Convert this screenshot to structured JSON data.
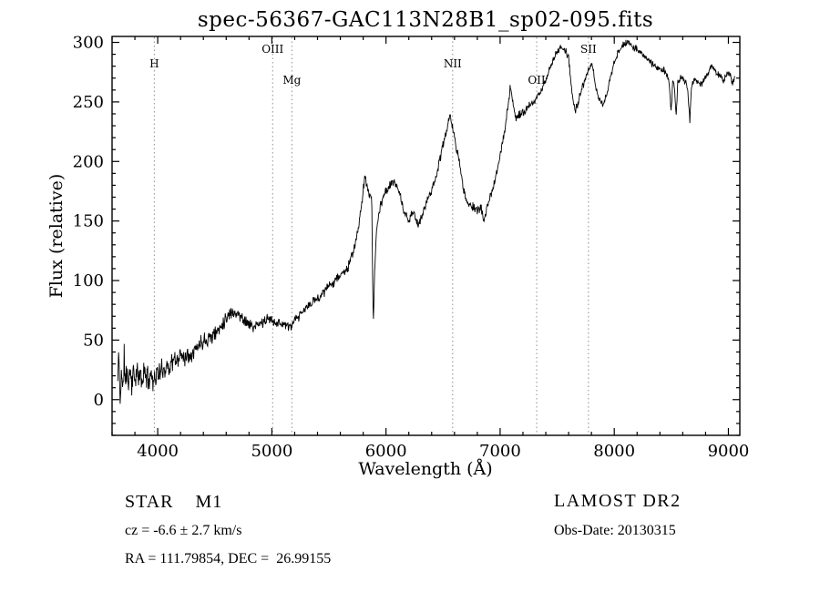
{
  "title": "spec-56367-GAC113N28B1_sp02-095.fits",
  "footer": {
    "classification": "STAR    M1",
    "survey": "LAMOST DR2",
    "cz": "cz = -6.6 ± 2.7 km/s",
    "obs_date": "Obs-Date: 20130315",
    "coordinates": "RA = 111.79854, DEC =  26.99155"
  },
  "chart_data": {
    "type": "line",
    "title": "spec-56367-GAC113N28B1_sp02-095.fits",
    "xlabel": "Wavelength (Å)",
    "ylabel": "Flux (relative)",
    "xlim": [
      3600,
      9100
    ],
    "ylim": [
      -30,
      305
    ],
    "x_ticks": [
      4000,
      5000,
      6000,
      7000,
      8000,
      9000
    ],
    "y_ticks": [
      0,
      50,
      100,
      150,
      200,
      250,
      300
    ],
    "x_minor_step": 200,
    "y_minor_step": 10,
    "grid": false,
    "legend": "none",
    "line_color": "#000000",
    "marker_line_color": "#8f8f8f",
    "line_markers": [
      {
        "label": "H",
        "wavelength": 3970,
        "row": 1
      },
      {
        "label": "OIII",
        "wavelength": 5007,
        "row": 0
      },
      {
        "label": "Mg",
        "wavelength": 5175,
        "row": 2
      },
      {
        "label": "NII",
        "wavelength": 6584,
        "row": 1
      },
      {
        "label": "OII",
        "wavelength": 7320,
        "row": 2
      },
      {
        "label": "SII",
        "wavelength": 7774,
        "row": 0
      }
    ],
    "noise": {
      "seed": 11,
      "note": "pixel noise amplitude decreases from blue end to red end"
    },
    "spectrum": [
      [
        3650,
        15
      ],
      [
        3660,
        42
      ],
      [
        3670,
        -8
      ],
      [
        3682,
        30
      ],
      [
        3694,
        2
      ],
      [
        3706,
        36
      ],
      [
        3718,
        10
      ],
      [
        3730,
        28
      ],
      [
        3744,
        12
      ],
      [
        3758,
        26
      ],
      [
        3772,
        14
      ],
      [
        3786,
        22
      ],
      [
        3800,
        18
      ],
      [
        3816,
        24
      ],
      [
        3832,
        15
      ],
      [
        3848,
        22
      ],
      [
        3864,
        14
      ],
      [
        3882,
        25
      ],
      [
        3900,
        20
      ],
      [
        3920,
        17
      ],
      [
        3940,
        23
      ],
      [
        3960,
        16
      ],
      [
        3980,
        19
      ],
      [
        4000,
        23
      ],
      [
        4020,
        21
      ],
      [
        4040,
        26
      ],
      [
        4060,
        25
      ],
      [
        4080,
        29
      ],
      [
        4100,
        27
      ],
      [
        4120,
        31
      ],
      [
        4140,
        33
      ],
      [
        4160,
        32
      ],
      [
        4180,
        35
      ],
      [
        4200,
        37
      ],
      [
        4220,
        38
      ],
      [
        4240,
        36
      ],
      [
        4260,
        37
      ],
      [
        4280,
        39
      ],
      [
        4300,
        40
      ],
      [
        4320,
        42
      ],
      [
        4340,
        43
      ],
      [
        4360,
        46
      ],
      [
        4380,
        48
      ],
      [
        4400,
        50
      ],
      [
        4420,
        51
      ],
      [
        4440,
        52
      ],
      [
        4460,
        53
      ],
      [
        4480,
        54
      ],
      [
        4500,
        55
      ],
      [
        4520,
        57
      ],
      [
        4540,
        60
      ],
      [
        4560,
        63
      ],
      [
        4580,
        66
      ],
      [
        4600,
        69
      ],
      [
        4620,
        71
      ],
      [
        4640,
        73
      ],
      [
        4660,
        74
      ],
      [
        4680,
        73
      ],
      [
        4700,
        72
      ],
      [
        4720,
        70
      ],
      [
        4740,
        69
      ],
      [
        4760,
        67
      ],
      [
        4780,
        65
      ],
      [
        4800,
        63
      ],
      [
        4820,
        62
      ],
      [
        4840,
        61
      ],
      [
        4860,
        61
      ],
      [
        4880,
        63
      ],
      [
        4900,
        64
      ],
      [
        4920,
        65
      ],
      [
        4940,
        66
      ],
      [
        4960,
        67
      ],
      [
        4980,
        68
      ],
      [
        5000,
        67
      ],
      [
        5020,
        66
      ],
      [
        5040,
        65
      ],
      [
        5060,
        64
      ],
      [
        5080,
        64
      ],
      [
        5100,
        64
      ],
      [
        5120,
        63
      ],
      [
        5140,
        61
      ],
      [
        5160,
        61
      ],
      [
        5180,
        63
      ],
      [
        5200,
        66
      ],
      [
        5220,
        68
      ],
      [
        5240,
        70
      ],
      [
        5260,
        72
      ],
      [
        5280,
        75
      ],
      [
        5300,
        77
      ],
      [
        5320,
        79
      ],
      [
        5340,
        80
      ],
      [
        5360,
        82
      ],
      [
        5380,
        84
      ],
      [
        5400,
        85
      ],
      [
        5420,
        87
      ],
      [
        5440,
        89
      ],
      [
        5460,
        91
      ],
      [
        5480,
        93
      ],
      [
        5500,
        95
      ],
      [
        5520,
        97
      ],
      [
        5540,
        99
      ],
      [
        5560,
        101
      ],
      [
        5580,
        103
      ],
      [
        5600,
        105
      ],
      [
        5620,
        106
      ],
      [
        5640,
        108
      ],
      [
        5660,
        110
      ],
      [
        5680,
        114
      ],
      [
        5700,
        120
      ],
      [
        5720,
        127
      ],
      [
        5740,
        135
      ],
      [
        5760,
        146
      ],
      [
        5780,
        158
      ],
      [
        5800,
        175
      ],
      [
        5815,
        187
      ],
      [
        5830,
        181
      ],
      [
        5845,
        176
      ],
      [
        5860,
        172
      ],
      [
        5875,
        168
      ],
      [
        5888,
        62
      ],
      [
        5902,
        112
      ],
      [
        5916,
        140
      ],
      [
        5930,
        152
      ],
      [
        5945,
        160
      ],
      [
        5960,
        166
      ],
      [
        5980,
        171
      ],
      [
        6000,
        175
      ],
      [
        6020,
        178
      ],
      [
        6040,
        180
      ],
      [
        6060,
        182
      ],
      [
        6080,
        183
      ],
      [
        6100,
        178
      ],
      [
        6120,
        172
      ],
      [
        6140,
        164
      ],
      [
        6160,
        158
      ],
      [
        6180,
        153
      ],
      [
        6200,
        150
      ],
      [
        6220,
        154
      ],
      [
        6240,
        158
      ],
      [
        6260,
        152
      ],
      [
        6280,
        147
      ],
      [
        6300,
        150
      ],
      [
        6320,
        155
      ],
      [
        6340,
        161
      ],
      [
        6360,
        168
      ],
      [
        6380,
        172
      ],
      [
        6400,
        176
      ],
      [
        6420,
        182
      ],
      [
        6440,
        188
      ],
      [
        6460,
        196
      ],
      [
        6480,
        205
      ],
      [
        6500,
        214
      ],
      [
        6520,
        222
      ],
      [
        6540,
        231
      ],
      [
        6560,
        238
      ],
      [
        6575,
        232
      ],
      [
        6590,
        225
      ],
      [
        6605,
        218
      ],
      [
        6620,
        210
      ],
      [
        6635,
        203
      ],
      [
        6650,
        196
      ],
      [
        6665,
        185
      ],
      [
        6680,
        175
      ],
      [
        6695,
        170
      ],
      [
        6710,
        166
      ],
      [
        6725,
        165
      ],
      [
        6740,
        164
      ],
      [
        6755,
        162
      ],
      [
        6770,
        161
      ],
      [
        6785,
        160
      ],
      [
        6800,
        159
      ],
      [
        6815,
        160
      ],
      [
        6830,
        162
      ],
      [
        6845,
        157
      ],
      [
        6860,
        150
      ],
      [
        6875,
        155
      ],
      [
        6890,
        164
      ],
      [
        6905,
        168
      ],
      [
        6920,
        172
      ],
      [
        6940,
        178
      ],
      [
        6960,
        185
      ],
      [
        6980,
        195
      ],
      [
        7000,
        205
      ],
      [
        7020,
        215
      ],
      [
        7040,
        228
      ],
      [
        7060,
        240
      ],
      [
        7075,
        252
      ],
      [
        7090,
        263
      ],
      [
        7100,
        258
      ],
      [
        7110,
        250
      ],
      [
        7125,
        242
      ],
      [
        7140,
        236
      ],
      [
        7160,
        238
      ],
      [
        7180,
        240
      ],
      [
        7200,
        241
      ],
      [
        7220,
        243
      ],
      [
        7240,
        245
      ],
      [
        7260,
        247
      ],
      [
        7280,
        248
      ],
      [
        7300,
        250
      ],
      [
        7320,
        253
      ],
      [
        7340,
        256
      ],
      [
        7360,
        260
      ],
      [
        7380,
        264
      ],
      [
        7400,
        269
      ],
      [
        7420,
        274
      ],
      [
        7440,
        279
      ],
      [
        7460,
        284
      ],
      [
        7480,
        288
      ],
      [
        7500,
        292
      ],
      [
        7520,
        295
      ],
      [
        7540,
        297
      ],
      [
        7555,
        295
      ],
      [
        7570,
        293
      ],
      [
        7585,
        290
      ],
      [
        7600,
        288
      ],
      [
        7615,
        272
      ],
      [
        7630,
        258
      ],
      [
        7645,
        248
      ],
      [
        7660,
        243
      ],
      [
        7675,
        247
      ],
      [
        7690,
        252
      ],
      [
        7705,
        257
      ],
      [
        7720,
        262
      ],
      [
        7735,
        266
      ],
      [
        7750,
        270
      ],
      [
        7765,
        274
      ],
      [
        7780,
        277
      ],
      [
        7795,
        279
      ],
      [
        7810,
        280
      ],
      [
        7825,
        272
      ],
      [
        7840,
        262
      ],
      [
        7855,
        256
      ],
      [
        7870,
        252
      ],
      [
        7885,
        249
      ],
      [
        7900,
        247
      ],
      [
        7915,
        251
      ],
      [
        7930,
        255
      ],
      [
        7945,
        261
      ],
      [
        7960,
        268
      ],
      [
        7980,
        276
      ],
      [
        8000,
        283
      ],
      [
        8020,
        288
      ],
      [
        8040,
        292
      ],
      [
        8060,
        295
      ],
      [
        8080,
        298
      ],
      [
        8100,
        299
      ],
      [
        8120,
        300
      ],
      [
        8140,
        298
      ],
      [
        8160,
        297
      ],
      [
        8180,
        295
      ],
      [
        8200,
        294
      ],
      [
        8220,
        292
      ],
      [
        8240,
        291
      ],
      [
        8260,
        289
      ],
      [
        8280,
        287
      ],
      [
        8300,
        285
      ],
      [
        8320,
        283
      ],
      [
        8340,
        281
      ],
      [
        8360,
        280
      ],
      [
        8380,
        279
      ],
      [
        8400,
        278
      ],
      [
        8420,
        277
      ],
      [
        8440,
        276
      ],
      [
        8460,
        273
      ],
      [
        8480,
        268
      ],
      [
        8498,
        240
      ],
      [
        8512,
        268
      ],
      [
        8527,
        265
      ],
      [
        8542,
        238
      ],
      [
        8556,
        266
      ],
      [
        8570,
        269
      ],
      [
        8585,
        271
      ],
      [
        8600,
        270
      ],
      [
        8615,
        268
      ],
      [
        8630,
        266
      ],
      [
        8645,
        258
      ],
      [
        8662,
        235
      ],
      [
        8676,
        262
      ],
      [
        8690,
        267
      ],
      [
        8705,
        270
      ],
      [
        8720,
        268
      ],
      [
        8735,
        267
      ],
      [
        8750,
        265
      ],
      [
        8765,
        264
      ],
      [
        8780,
        268
      ],
      [
        8795,
        270
      ],
      [
        8810,
        273
      ],
      [
        8825,
        276
      ],
      [
        8840,
        278
      ],
      [
        8855,
        280
      ],
      [
        8870,
        278
      ],
      [
        8885,
        276
      ],
      [
        8900,
        274
      ],
      [
        8915,
        272
      ],
      [
        8930,
        271
      ],
      [
        8945,
        269
      ],
      [
        8960,
        268
      ],
      [
        8975,
        271
      ],
      [
        8990,
        274
      ],
      [
        9005,
        276
      ],
      [
        9020,
        270
      ],
      [
        9035,
        264
      ],
      [
        9050,
        268
      ],
      [
        9060,
        272
      ]
    ]
  }
}
